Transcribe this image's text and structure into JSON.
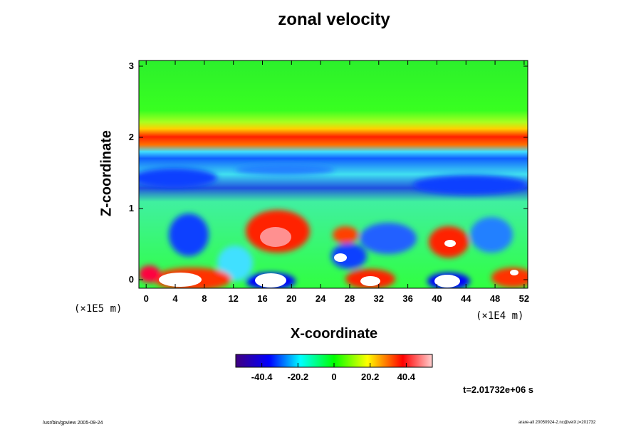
{
  "chart_data": {
    "type": "heatmap",
    "title": "zonal velocity",
    "xlabel": "X-coordinate",
    "ylabel": "Z-coordinate",
    "x_ticks": [
      "0",
      "4",
      "8",
      "12",
      "16",
      "20",
      "24",
      "28",
      "32",
      "36",
      "40",
      "44",
      "48",
      "52"
    ],
    "y_ticks": [
      "0",
      "1",
      "2",
      "3"
    ],
    "x_scale_label": "(×1E4 m)",
    "y_scale_label": "(×1E5 m)",
    "xlim": [
      -1,
      52.5
    ],
    "ylim": [
      -0.12,
      3.08
    ],
    "colorbar": {
      "ticks": [
        "-40.4",
        "-20.2",
        "0",
        "20.2",
        "40.4"
      ],
      "tick_values": [
        -40.4,
        -20.2,
        0,
        20.2,
        40.4
      ],
      "range": [
        -55,
        55
      ],
      "colormap": [
        "#400080",
        "#0000ff",
        "#00ffff",
        "#00ff00",
        "#ffff00",
        "#ff0000",
        "#ffd0d0"
      ]
    },
    "annotation": "t=2.01732e+06 s",
    "description_bands": [
      {
        "z_range": [
          0,
          1.4
        ],
        "note": "mixed positive/negative eddies"
      },
      {
        "z_range": [
          1.4,
          1.7
        ],
        "value": -25
      },
      {
        "z_range": [
          1.8,
          2.0
        ],
        "value": 45
      },
      {
        "z_range": [
          2.2,
          3.08
        ],
        "value": 0
      }
    ]
  },
  "footer": {
    "left": "/usr/bin/gpview 2005-09-24",
    "right": "arare-all 20050924-2.nc@velX,t=201732"
  }
}
